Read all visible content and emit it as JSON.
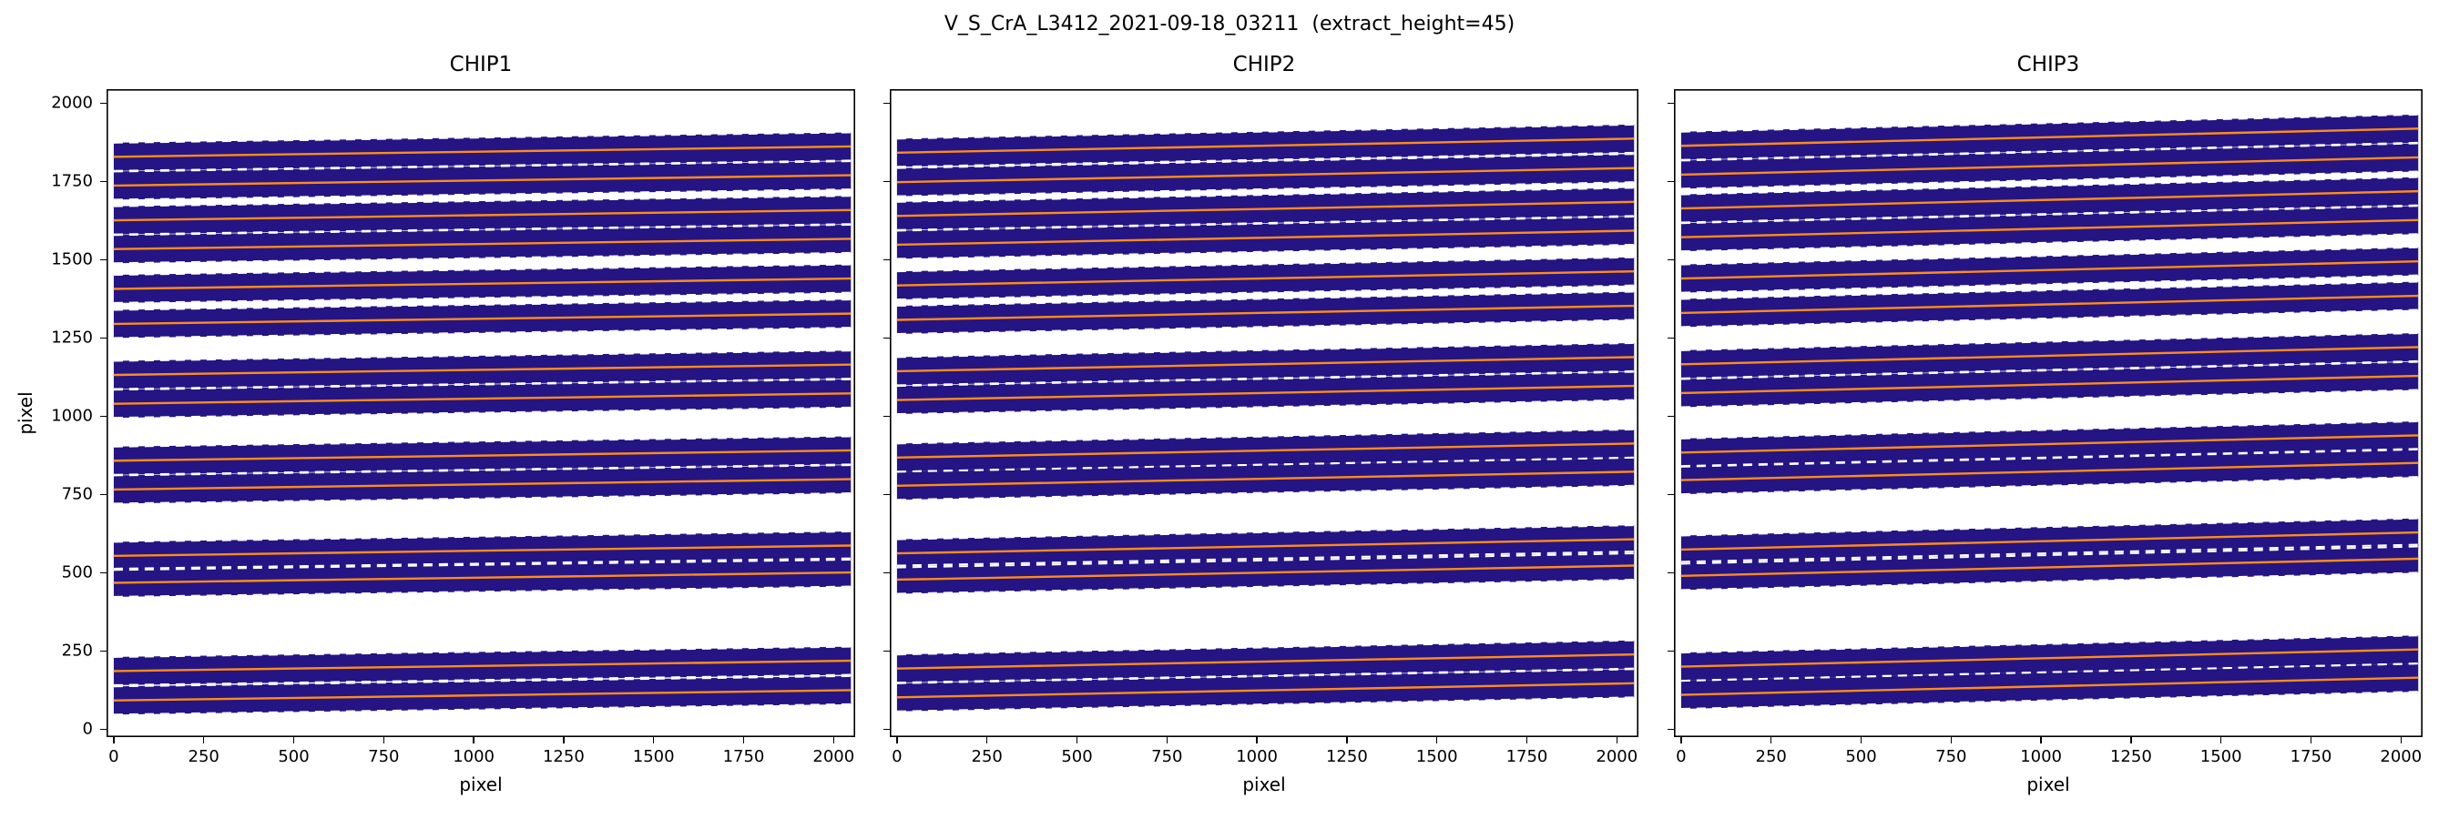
{
  "figure": {
    "title": "V_S_CrA_L3412_2021-09-18_03211  (extract_height=45)",
    "background_color": "#ffffff"
  },
  "chart_data": {
    "type": "heatmap",
    "description": "Echelle spectrograph order-trace map over three detector chips. Dark blue/indigo bands are the spectral order extraction windows, solid orange lines are the fitted order trace centers, and white dashed lines mark the extraction window edges (center ± extract_height).",
    "xlabel": "pixel",
    "ylabel": "pixel",
    "xlim": [
      -20,
      2060
    ],
    "ylim": [
      -25,
      2045
    ],
    "xticks": [
      0,
      250,
      500,
      750,
      1000,
      1250,
      1500,
      1750,
      2000
    ],
    "yticks": [
      0,
      250,
      500,
      750,
      1000,
      1250,
      1500,
      1750,
      2000
    ],
    "trace_x_range": [
      0,
      2048
    ],
    "extract_half_height": 45,
    "colors": {
      "band_fill": "#251483",
      "trace_center_line": "#ff8c1a",
      "window_edge_line": "#ffffff",
      "axes_edge": "#000000",
      "text": "#000000"
    },
    "panels": [
      {
        "title": "CHIP1",
        "show_y_tick_labels": true,
        "orders": [
          {
            "y_left": 92,
            "y_right": 125
          },
          {
            "y_left": 186,
            "y_right": 219
          },
          {
            "y_left": 468,
            "y_right": 501
          },
          {
            "y_left": 554,
            "y_right": 587
          },
          {
            "y_left": 766,
            "y_right": 799
          },
          {
            "y_left": 858,
            "y_right": 891
          },
          {
            "y_left": 1040,
            "y_right": 1073
          },
          {
            "y_left": 1132,
            "y_right": 1165
          },
          {
            "y_left": 1295,
            "y_right": 1328
          },
          {
            "y_left": 1407,
            "y_right": 1440
          },
          {
            "y_left": 1534,
            "y_right": 1567
          },
          {
            "y_left": 1626,
            "y_right": 1659
          },
          {
            "y_left": 1737,
            "y_right": 1770
          },
          {
            "y_left": 1829,
            "y_right": 1862
          }
        ]
      },
      {
        "title": "CHIP2",
        "show_y_tick_labels": false,
        "orders": [
          {
            "y_left": 102,
            "y_right": 147
          },
          {
            "y_left": 194,
            "y_right": 239
          },
          {
            "y_left": 478,
            "y_right": 523
          },
          {
            "y_left": 562,
            "y_right": 607
          },
          {
            "y_left": 778,
            "y_right": 823
          },
          {
            "y_left": 868,
            "y_right": 913
          },
          {
            "y_left": 1052,
            "y_right": 1097
          },
          {
            "y_left": 1144,
            "y_right": 1189
          },
          {
            "y_left": 1308,
            "y_right": 1353
          },
          {
            "y_left": 1418,
            "y_right": 1463
          },
          {
            "y_left": 1548,
            "y_right": 1593
          },
          {
            "y_left": 1640,
            "y_right": 1685
          },
          {
            "y_left": 1748,
            "y_right": 1793
          },
          {
            "y_left": 1842,
            "y_right": 1887
          }
        ]
      },
      {
        "title": "CHIP3",
        "show_y_tick_labels": false,
        "orders": [
          {
            "y_left": 110,
            "y_right": 165
          },
          {
            "y_left": 200,
            "y_right": 255
          },
          {
            "y_left": 490,
            "y_right": 545
          },
          {
            "y_left": 574,
            "y_right": 629
          },
          {
            "y_left": 796,
            "y_right": 851
          },
          {
            "y_left": 884,
            "y_right": 939
          },
          {
            "y_left": 1074,
            "y_right": 1129
          },
          {
            "y_left": 1166,
            "y_right": 1221
          },
          {
            "y_left": 1330,
            "y_right": 1385
          },
          {
            "y_left": 1440,
            "y_right": 1495
          },
          {
            "y_left": 1572,
            "y_right": 1627
          },
          {
            "y_left": 1664,
            "y_right": 1719
          },
          {
            "y_left": 1772,
            "y_right": 1827
          },
          {
            "y_left": 1864,
            "y_right": 1919
          }
        ]
      }
    ]
  }
}
